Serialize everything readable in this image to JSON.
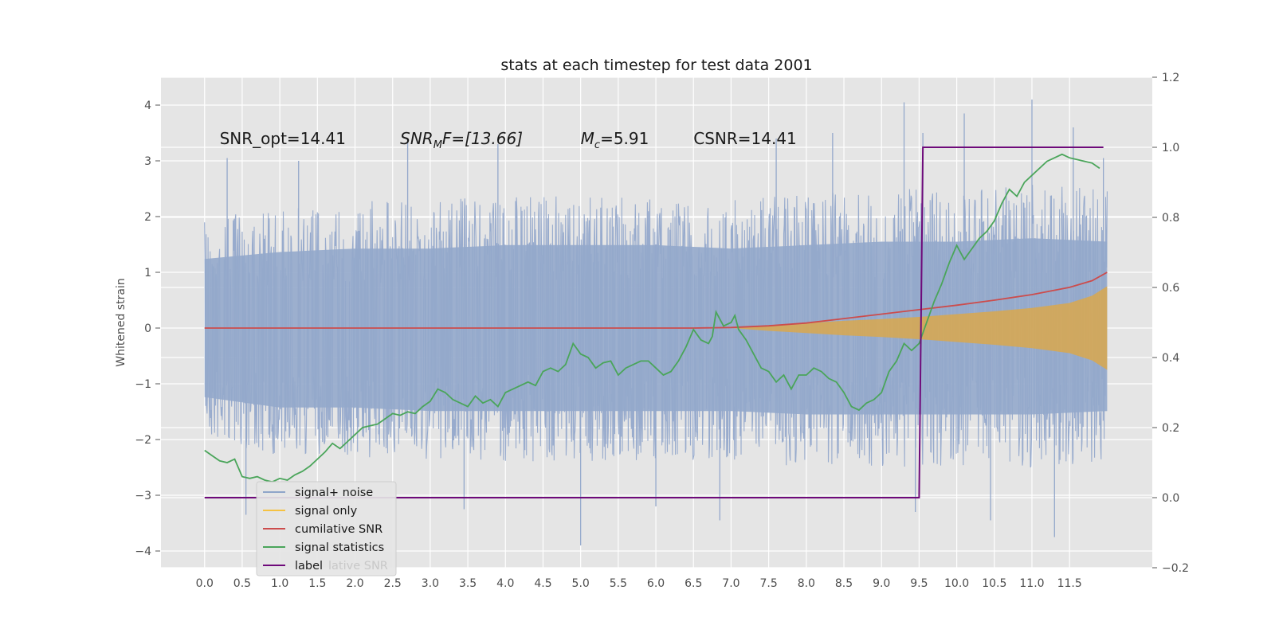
{
  "chart_data": {
    "type": "line",
    "title": "stats at each timestep for test data 2001",
    "ylabel": "Whitened strain",
    "xlabel": "",
    "xlim": [
      -0.58,
      12.6
    ],
    "ylim": [
      -4.3,
      4.5
    ],
    "y2lim": [
      -0.2,
      1.2
    ],
    "grid": true,
    "legend_placement": "lower-left",
    "x_ticks": [
      "0.0",
      "0.5",
      "1.0",
      "1.5",
      "2.0",
      "2.5",
      "3.0",
      "3.5",
      "4.0",
      "4.5",
      "5.0",
      "5.5",
      "6.0",
      "6.5",
      "7.0",
      "7.5",
      "8.0",
      "8.5",
      "9.0",
      "9.5",
      "10.0",
      "10.5",
      "11.0",
      "11.5"
    ],
    "y_ticks": [
      "4",
      "3",
      "2",
      "1",
      "0",
      "−1",
      "−2",
      "−3",
      "−4"
    ],
    "y2_ticks": [
      "1.2",
      "1.0",
      "0.8",
      "0.6",
      "0.4",
      "0.2",
      "0.0",
      "−0.2"
    ],
    "annotations": [
      {
        "text": "SNR_opt=14.41",
        "x": 0.2,
        "y": 3.3
      },
      {
        "text_prefix": "SNR",
        "text_sub": "M",
        "text_suffix": "F=[13.66]",
        "x": 2.6,
        "y": 3.3
      },
      {
        "text_prefix": "M",
        "text_sub": "c",
        "text_suffix": "=5.91",
        "x": 5.0,
        "y": 3.3
      },
      {
        "text": "CSNR=14.41",
        "x": 6.5,
        "y": 3.3
      }
    ],
    "legend": [
      {
        "label": "signal+ noise",
        "color": "#8fa5c9"
      },
      {
        "label": "signal only",
        "color": "#f5c242"
      },
      {
        "label": "cumilative SNR",
        "color": "#cc4c4c"
      },
      {
        "label": "signal statistics",
        "color": "#4aa55a"
      },
      {
        "label": "label",
        "color": "#6e0a7a"
      }
    ],
    "legend_ghost_text": "lative SNR",
    "series": [
      {
        "name": "signal+ noise",
        "axis": "left",
        "color": "#94a8cb",
        "description_only": "dense noise trace, envelope roughly ±2.5 with spikes to ±4",
        "envelope": {
          "x": [
            0.0,
            1.0,
            2.0,
            3.0,
            4.0,
            5.0,
            6.0,
            7.0,
            8.0,
            9.0,
            10.0,
            11.0,
            12.0
          ],
          "upper": [
            2.0,
            2.2,
            2.3,
            2.3,
            2.4,
            2.4,
            2.4,
            2.3,
            2.4,
            2.5,
            2.5,
            2.6,
            2.5
          ],
          "lower": [
            -2.0,
            -2.3,
            -2.3,
            -2.4,
            -2.4,
            -2.4,
            -2.4,
            -2.4,
            -2.5,
            -2.5,
            -2.5,
            -2.5,
            -2.4
          ]
        },
        "spikes": [
          {
            "x": 0.55,
            "y": -3.35
          },
          {
            "x": 0.3,
            "y": 3.05
          },
          {
            "x": 1.25,
            "y": 3.0
          },
          {
            "x": 2.7,
            "y": 3.4
          },
          {
            "x": 3.45,
            "y": -3.25
          },
          {
            "x": 3.9,
            "y": 3.3
          },
          {
            "x": 5.0,
            "y": -3.9
          },
          {
            "x": 6.0,
            "y": 1.5
          },
          {
            "x": 6.0,
            "y": -3.2
          },
          {
            "x": 6.85,
            "y": -3.45
          },
          {
            "x": 7.6,
            "y": 3.4
          },
          {
            "x": 8.35,
            "y": 3.5
          },
          {
            "x": 9.3,
            "y": 4.05
          },
          {
            "x": 9.45,
            "y": -3.3
          },
          {
            "x": 9.55,
            "y": 3.5
          },
          {
            "x": 10.1,
            "y": 3.85
          },
          {
            "x": 10.45,
            "y": -3.45
          },
          {
            "x": 11.0,
            "y": 4.1
          },
          {
            "x": 11.3,
            "y": -3.75
          },
          {
            "x": 11.55,
            "y": 3.6
          },
          {
            "x": 11.95,
            "y": 3.05
          }
        ]
      },
      {
        "name": "signal only",
        "axis": "left",
        "color": "#d9a84e",
        "x": [
          7.0,
          7.5,
          8.0,
          8.5,
          9.0,
          9.5,
          10.0,
          10.5,
          11.0,
          11.5,
          11.8,
          12.0
        ],
        "upper": [
          0.0,
          0.05,
          0.09,
          0.13,
          0.16,
          0.2,
          0.25,
          0.3,
          0.36,
          0.45,
          0.58,
          0.75
        ],
        "lower": [
          0.0,
          -0.05,
          -0.09,
          -0.13,
          -0.16,
          -0.2,
          -0.25,
          -0.3,
          -0.36,
          -0.45,
          -0.58,
          -0.75
        ]
      },
      {
        "name": "cumilative SNR",
        "axis": "left",
        "color": "#cc4c4c",
        "x": [
          0.0,
          6.0,
          6.5,
          7.0,
          7.5,
          8.0,
          8.5,
          9.0,
          9.5,
          10.0,
          10.5,
          11.0,
          11.5,
          11.8,
          12.0
        ],
        "y": [
          0.0,
          0.0,
          0.0,
          0.01,
          0.04,
          0.09,
          0.17,
          0.25,
          0.33,
          0.41,
          0.5,
          0.6,
          0.73,
          0.85,
          1.0
        ]
      },
      {
        "name": "signal statistics",
        "axis": "right",
        "color": "#4aa55a",
        "x": [
          0.0,
          0.1,
          0.2,
          0.3,
          0.4,
          0.5,
          0.6,
          0.7,
          0.8,
          0.9,
          1.0,
          1.1,
          1.2,
          1.3,
          1.4,
          1.5,
          1.6,
          1.7,
          1.8,
          1.9,
          2.0,
          2.1,
          2.2,
          2.3,
          2.4,
          2.5,
          2.6,
          2.7,
          2.8,
          2.9,
          3.0,
          3.1,
          3.2,
          3.3,
          3.4,
          3.5,
          3.6,
          3.7,
          3.8,
          3.9,
          4.0,
          4.1,
          4.2,
          4.3,
          4.4,
          4.5,
          4.6,
          4.7,
          4.8,
          4.9,
          5.0,
          5.1,
          5.2,
          5.3,
          5.4,
          5.5,
          5.6,
          5.7,
          5.8,
          5.9,
          6.0,
          6.1,
          6.2,
          6.3,
          6.4,
          6.5,
          6.6,
          6.7,
          6.75,
          6.8,
          6.9,
          7.0,
          7.05,
          7.1,
          7.2,
          7.3,
          7.4,
          7.5,
          7.6,
          7.7,
          7.8,
          7.9,
          8.0,
          8.1,
          8.2,
          8.3,
          8.4,
          8.5,
          8.6,
          8.7,
          8.8,
          8.9,
          9.0,
          9.1,
          9.2,
          9.3,
          9.4,
          9.5,
          9.6,
          9.7,
          9.8,
          9.9,
          10.0,
          10.1,
          10.2,
          10.3,
          10.4,
          10.5,
          10.6,
          10.7,
          10.8,
          10.9,
          11.0,
          11.1,
          11.2,
          11.3,
          11.4,
          11.5,
          11.6,
          11.7,
          11.8,
          11.9
        ],
        "y": [
          0.135,
          0.12,
          0.105,
          0.1,
          0.11,
          0.06,
          0.055,
          0.06,
          0.05,
          0.045,
          0.055,
          0.05,
          0.065,
          0.075,
          0.09,
          0.11,
          0.13,
          0.155,
          0.14,
          0.16,
          0.18,
          0.2,
          0.205,
          0.21,
          0.225,
          0.24,
          0.235,
          0.245,
          0.24,
          0.26,
          0.275,
          0.31,
          0.3,
          0.28,
          0.27,
          0.26,
          0.29,
          0.27,
          0.28,
          0.26,
          0.3,
          0.31,
          0.32,
          0.33,
          0.32,
          0.36,
          0.37,
          0.36,
          0.38,
          0.44,
          0.41,
          0.4,
          0.37,
          0.385,
          0.39,
          0.35,
          0.37,
          0.38,
          0.39,
          0.39,
          0.37,
          0.35,
          0.36,
          0.39,
          0.43,
          0.48,
          0.45,
          0.44,
          0.46,
          0.53,
          0.49,
          0.5,
          0.52,
          0.48,
          0.45,
          0.41,
          0.37,
          0.36,
          0.33,
          0.35,
          0.31,
          0.35,
          0.35,
          0.37,
          0.36,
          0.34,
          0.33,
          0.3,
          0.26,
          0.25,
          0.27,
          0.28,
          0.3,
          0.36,
          0.39,
          0.44,
          0.42,
          0.44,
          0.5,
          0.56,
          0.61,
          0.67,
          0.72,
          0.68,
          0.71,
          0.74,
          0.76,
          0.79,
          0.84,
          0.88,
          0.86,
          0.9,
          0.92,
          0.94,
          0.96,
          0.97,
          0.98,
          0.97,
          0.965,
          0.96,
          0.955,
          0.94
        ]
      },
      {
        "name": "label",
        "axis": "right",
        "color": "#6e0a7a",
        "x": [
          0.0,
          9.5,
          9.55,
          11.95
        ],
        "y": [
          0.0,
          0.0,
          1.0,
          1.0
        ]
      }
    ]
  }
}
